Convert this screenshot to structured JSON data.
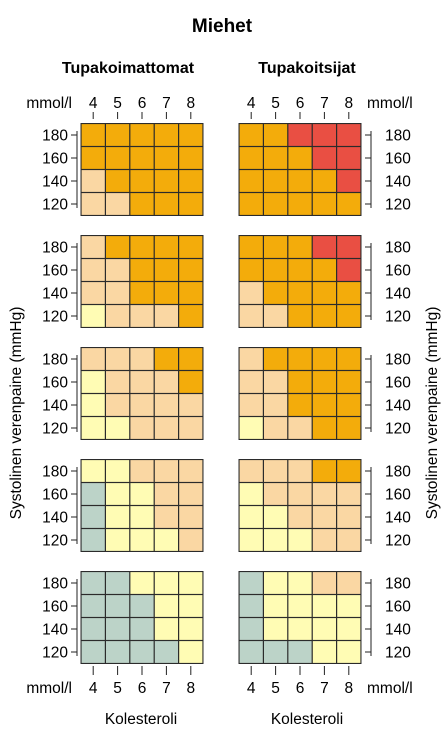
{
  "chart_data": {
    "type": "heatmap",
    "title": "Miehet",
    "panel_titles": [
      "Tupakoimattomat",
      "Tupakoitsijat"
    ],
    "x_categories": [
      "4",
      "5",
      "6",
      "7",
      "8"
    ],
    "x_unit": "mmol/l",
    "xlabel": "Kolesteroli",
    "y_categories": [
      "180",
      "160",
      "140",
      "120"
    ],
    "ylabel": "Systolinen verenpaine (mmHg)",
    "level_colors": {
      "1": "#bcd3c8",
      "2": "#fffcb4",
      "3": "#fad7a3",
      "4": "#f3ac0b",
      "5": "#e94f43"
    },
    "grids": {
      "nonsmokers": [
        [
          [
            4,
            4,
            4,
            4,
            4
          ],
          [
            4,
            4,
            4,
            4,
            4
          ],
          [
            3,
            4,
            4,
            4,
            4
          ],
          [
            3,
            3,
            4,
            4,
            4
          ]
        ],
        [
          [
            3,
            4,
            4,
            4,
            4
          ],
          [
            3,
            3,
            4,
            4,
            4
          ],
          [
            3,
            3,
            4,
            4,
            4
          ],
          [
            2,
            3,
            3,
            3,
            4
          ]
        ],
        [
          [
            3,
            3,
            3,
            4,
            4
          ],
          [
            2,
            3,
            3,
            3,
            4
          ],
          [
            2,
            3,
            3,
            3,
            3
          ],
          [
            2,
            2,
            3,
            3,
            3
          ]
        ],
        [
          [
            2,
            2,
            3,
            3,
            3
          ],
          [
            1,
            2,
            2,
            3,
            3
          ],
          [
            1,
            2,
            2,
            3,
            3
          ],
          [
            1,
            2,
            2,
            2,
            3
          ]
        ],
        [
          [
            1,
            1,
            2,
            2,
            2
          ],
          [
            1,
            1,
            1,
            2,
            2
          ],
          [
            1,
            1,
            1,
            2,
            2
          ],
          [
            1,
            1,
            1,
            1,
            2
          ]
        ]
      ],
      "smokers": [
        [
          [
            4,
            4,
            5,
            5,
            5
          ],
          [
            4,
            4,
            4,
            5,
            5
          ],
          [
            4,
            4,
            4,
            4,
            5
          ],
          [
            4,
            4,
            4,
            4,
            4
          ]
        ],
        [
          [
            4,
            4,
            4,
            5,
            5
          ],
          [
            4,
            4,
            4,
            4,
            5
          ],
          [
            3,
            4,
            4,
            4,
            4
          ],
          [
            3,
            3,
            4,
            4,
            4
          ]
        ],
        [
          [
            3,
            4,
            4,
            4,
            4
          ],
          [
            3,
            3,
            4,
            4,
            4
          ],
          [
            3,
            3,
            4,
            4,
            4
          ],
          [
            2,
            3,
            3,
            4,
            4
          ]
        ],
        [
          [
            3,
            3,
            3,
            4,
            4
          ],
          [
            2,
            3,
            3,
            3,
            3
          ],
          [
            2,
            2,
            3,
            3,
            3
          ],
          [
            2,
            2,
            2,
            3,
            3
          ]
        ],
        [
          [
            1,
            2,
            2,
            3,
            3
          ],
          [
            1,
            2,
            2,
            2,
            2
          ],
          [
            1,
            2,
            2,
            2,
            2
          ],
          [
            1,
            1,
            1,
            2,
            2
          ]
        ]
      ]
    }
  }
}
